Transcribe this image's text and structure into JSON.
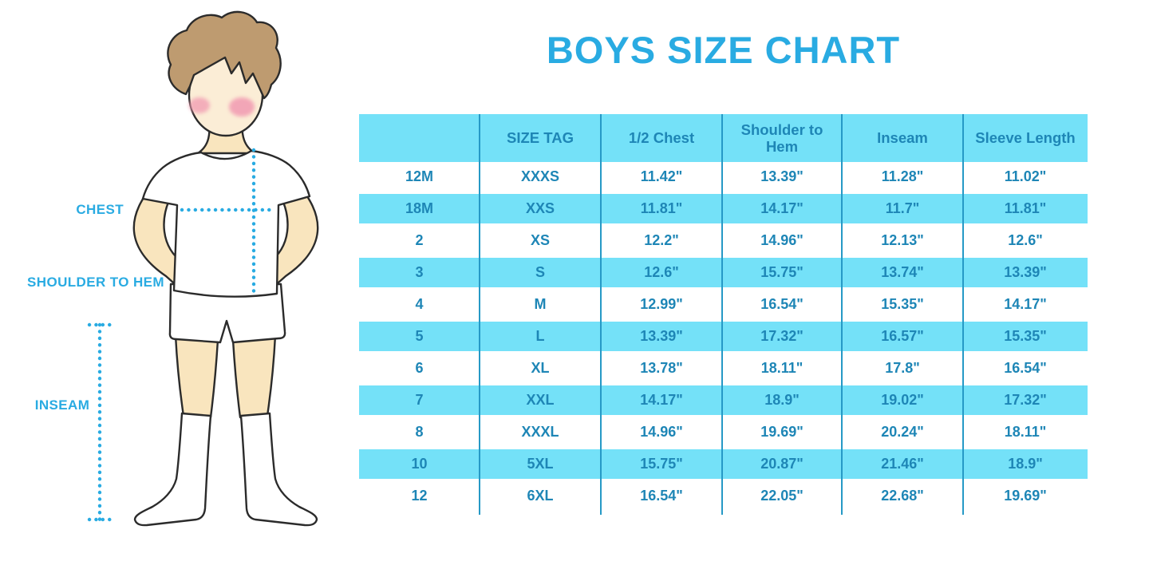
{
  "title": "BOYS SIZE CHART",
  "figure": {
    "description": "boy wearing t-shirt, shorts and knee socks with dotted measurement guides",
    "labels": {
      "chest": "CHEST",
      "shoulder_to_hem": "SHOULDER TO HEM",
      "inseam": "INSEAM"
    }
  },
  "chart_data": {
    "type": "table",
    "title": "BOYS SIZE CHART",
    "columns": [
      "",
      "SIZE TAG",
      "1/2 Chest",
      "Shoulder to Hem",
      "Inseam",
      "Sleeve Length"
    ],
    "rows": [
      [
        "12M",
        "XXXS",
        "11.42\"",
        "13.39\"",
        "11.28\"",
        "11.02\""
      ],
      [
        "18M",
        "XXS",
        "11.81\"",
        "14.17\"",
        "11.7\"",
        "11.81\""
      ],
      [
        "2",
        "XS",
        "12.2\"",
        "14.96\"",
        "12.13\"",
        "12.6\""
      ],
      [
        "3",
        "S",
        "12.6\"",
        "15.75\"",
        "13.74\"",
        "13.39\""
      ],
      [
        "4",
        "M",
        "12.99\"",
        "16.54\"",
        "15.35\"",
        "14.17\""
      ],
      [
        "5",
        "L",
        "13.39\"",
        "17.32\"",
        "16.57\"",
        "15.35\""
      ],
      [
        "6",
        "XL",
        "13.78\"",
        "18.11\"",
        "17.8\"",
        "16.54\""
      ],
      [
        "7",
        "XXL",
        "14.17\"",
        "18.9\"",
        "19.02\"",
        "17.32\""
      ],
      [
        "8",
        "XXXL",
        "14.96\"",
        "19.69\"",
        "20.24\"",
        "18.11\""
      ],
      [
        "10",
        "5XL",
        "15.75\"",
        "20.87\"",
        "21.46\"",
        "18.9\""
      ],
      [
        "12",
        "6XL",
        "16.54\"",
        "22.05\"",
        "22.68\"",
        "19.69\""
      ]
    ],
    "legend_position": "none",
    "grid": "column-dividers",
    "row_striping": [
      "white",
      "cyan"
    ]
  },
  "colors": {
    "accent_blue": "#29ABE2",
    "band_cyan": "#74E1F8",
    "table_text": "#1E86B6",
    "divider": "#2699C6",
    "skin": "#F9E5BE",
    "face": "#FBEDD6",
    "hair": "#BE9B70",
    "cheek": "#F29FB4",
    "outline": "#2B2B2B"
  }
}
